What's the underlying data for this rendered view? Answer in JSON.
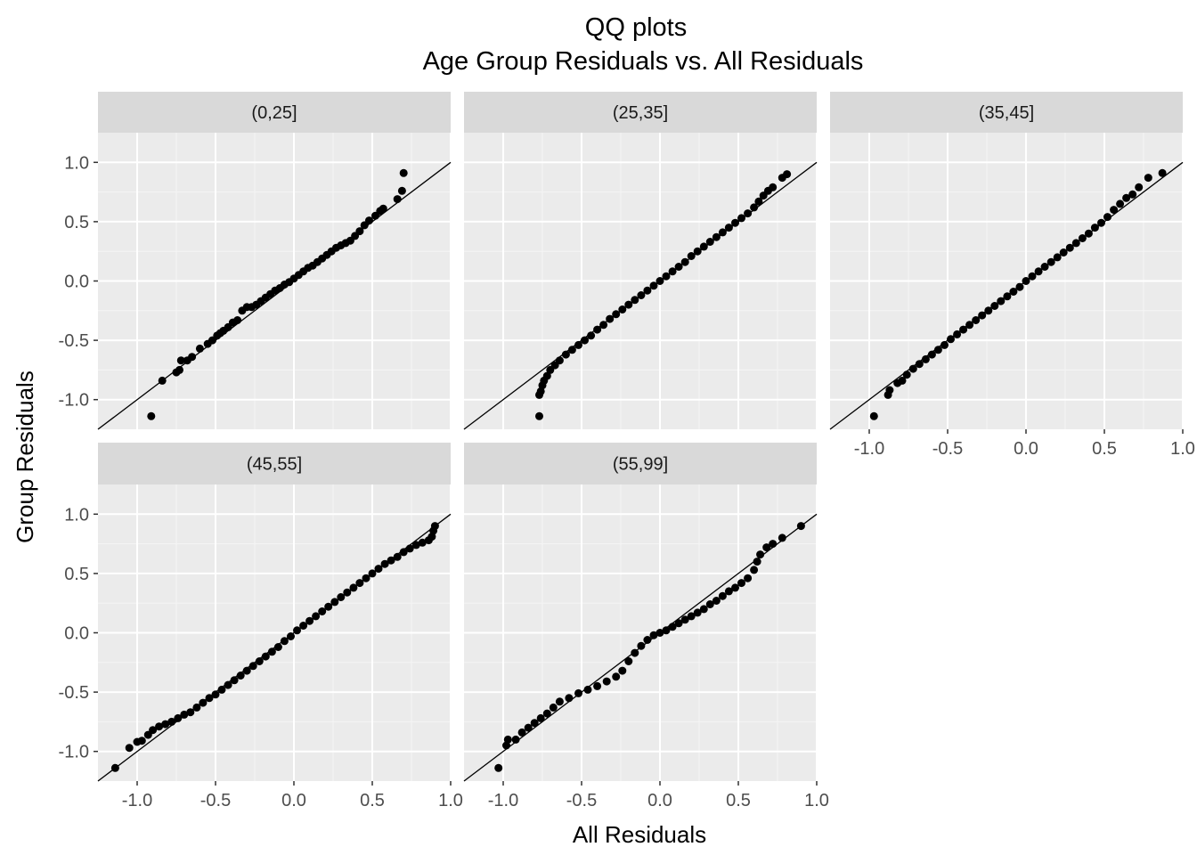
{
  "chart_data": {
    "type": "scatter",
    "title": "QQ plots",
    "subtitle": "Age Group Residuals vs. All Residuals",
    "xlabel": "All Residuals",
    "ylabel": "Group Residuals",
    "xlim": [
      -1.25,
      1.0
    ],
    "ylim": [
      -1.25,
      1.25
    ],
    "x_ticks": [
      -1.0,
      -0.5,
      0.0,
      0.5,
      1.0
    ],
    "y_ticks": [
      -1.0,
      -0.5,
      0.0,
      0.5,
      1.0
    ],
    "x_tick_labels": [
      "-1.0",
      "-0.5",
      "0.0",
      "0.5",
      "1.0"
    ],
    "y_tick_labels": [
      "-1.0",
      "-0.5",
      "0.0",
      "0.5",
      "1.0"
    ],
    "reference_line": {
      "slope": 1,
      "intercept": 0
    },
    "grid": true,
    "colors": {
      "panel_bg": "#ebebeb",
      "strip_bg": "#d9d9d9",
      "grid_major": "#ffffff",
      "grid_minor": "#f5f5f5",
      "point": "#000000",
      "line": "#000000",
      "text": "#4d4d4d",
      "strip_text": "#1a1a1a"
    },
    "panels": [
      {
        "label": "(0,25]",
        "points": [
          [
            -0.91,
            -1.14
          ],
          [
            -0.84,
            -0.84
          ],
          [
            -0.75,
            -0.77
          ],
          [
            -0.73,
            -0.75
          ],
          [
            -0.72,
            -0.67
          ],
          [
            -0.68,
            -0.67
          ],
          [
            -0.65,
            -0.64
          ],
          [
            -0.6,
            -0.57
          ],
          [
            -0.55,
            -0.53
          ],
          [
            -0.52,
            -0.5
          ],
          [
            -0.49,
            -0.46
          ],
          [
            -0.47,
            -0.44
          ],
          [
            -0.45,
            -0.42
          ],
          [
            -0.42,
            -0.39
          ],
          [
            -0.39,
            -0.35
          ],
          [
            -0.36,
            -0.33
          ],
          [
            -0.33,
            -0.25
          ],
          [
            -0.3,
            -0.22
          ],
          [
            -0.27,
            -0.22
          ],
          [
            -0.24,
            -0.2
          ],
          [
            -0.21,
            -0.17
          ],
          [
            -0.18,
            -0.14
          ],
          [
            -0.15,
            -0.11
          ],
          [
            -0.12,
            -0.08
          ],
          [
            -0.09,
            -0.06
          ],
          [
            -0.06,
            -0.03
          ],
          [
            -0.03,
            -0.01
          ],
          [
            0.0,
            0.02
          ],
          [
            0.03,
            0.05
          ],
          [
            0.06,
            0.08
          ],
          [
            0.09,
            0.11
          ],
          [
            0.12,
            0.13
          ],
          [
            0.15,
            0.16
          ],
          [
            0.18,
            0.19
          ],
          [
            0.21,
            0.22
          ],
          [
            0.24,
            0.25
          ],
          [
            0.27,
            0.28
          ],
          [
            0.3,
            0.3
          ],
          [
            0.33,
            0.32
          ],
          [
            0.36,
            0.34
          ],
          [
            0.39,
            0.38
          ],
          [
            0.42,
            0.42
          ],
          [
            0.45,
            0.47
          ],
          [
            0.48,
            0.51
          ],
          [
            0.52,
            0.55
          ],
          [
            0.55,
            0.59
          ],
          [
            0.57,
            0.61
          ],
          [
            0.66,
            0.69
          ],
          [
            0.69,
            0.76
          ],
          [
            0.7,
            0.91
          ]
        ]
      },
      {
        "label": "(25,35]",
        "points": [
          [
            -0.77,
            -1.14
          ],
          [
            -0.77,
            -0.96
          ],
          [
            -0.76,
            -0.93
          ],
          [
            -0.75,
            -0.88
          ],
          [
            -0.74,
            -0.84
          ],
          [
            -0.72,
            -0.8
          ],
          [
            -0.7,
            -0.75
          ],
          [
            -0.67,
            -0.71
          ],
          [
            -0.64,
            -0.67
          ],
          [
            -0.6,
            -0.62
          ],
          [
            -0.56,
            -0.58
          ],
          [
            -0.52,
            -0.54
          ],
          [
            -0.48,
            -0.5
          ],
          [
            -0.44,
            -0.46
          ],
          [
            -0.4,
            -0.41
          ],
          [
            -0.36,
            -0.37
          ],
          [
            -0.32,
            -0.32
          ],
          [
            -0.28,
            -0.28
          ],
          [
            -0.24,
            -0.24
          ],
          [
            -0.2,
            -0.2
          ],
          [
            -0.16,
            -0.16
          ],
          [
            -0.12,
            -0.12
          ],
          [
            -0.08,
            -0.08
          ],
          [
            -0.04,
            -0.04
          ],
          [
            0.0,
            0.0
          ],
          [
            0.04,
            0.04
          ],
          [
            0.08,
            0.08
          ],
          [
            0.12,
            0.12
          ],
          [
            0.16,
            0.16
          ],
          [
            0.2,
            0.21
          ],
          [
            0.24,
            0.25
          ],
          [
            0.28,
            0.29
          ],
          [
            0.32,
            0.33
          ],
          [
            0.36,
            0.37
          ],
          [
            0.4,
            0.41
          ],
          [
            0.44,
            0.45
          ],
          [
            0.48,
            0.49
          ],
          [
            0.52,
            0.53
          ],
          [
            0.56,
            0.57
          ],
          [
            0.6,
            0.62
          ],
          [
            0.63,
            0.67
          ],
          [
            0.66,
            0.72
          ],
          [
            0.69,
            0.76
          ],
          [
            0.72,
            0.79
          ],
          [
            0.78,
            0.87
          ],
          [
            0.81,
            0.9
          ]
        ]
      },
      {
        "label": "(35,45]",
        "points": [
          [
            -0.97,
            -1.14
          ],
          [
            -0.88,
            -0.96
          ],
          [
            -0.87,
            -0.92
          ],
          [
            -0.82,
            -0.86
          ],
          [
            -0.79,
            -0.84
          ],
          [
            -0.76,
            -0.79
          ],
          [
            -0.72,
            -0.74
          ],
          [
            -0.68,
            -0.7
          ],
          [
            -0.64,
            -0.66
          ],
          [
            -0.6,
            -0.62
          ],
          [
            -0.56,
            -0.58
          ],
          [
            -0.52,
            -0.54
          ],
          [
            -0.48,
            -0.49
          ],
          [
            -0.44,
            -0.45
          ],
          [
            -0.4,
            -0.41
          ],
          [
            -0.36,
            -0.37
          ],
          [
            -0.32,
            -0.33
          ],
          [
            -0.28,
            -0.29
          ],
          [
            -0.24,
            -0.25
          ],
          [
            -0.2,
            -0.21
          ],
          [
            -0.16,
            -0.17
          ],
          [
            -0.12,
            -0.13
          ],
          [
            -0.08,
            -0.09
          ],
          [
            -0.04,
            -0.05
          ],
          [
            0.0,
            0.0
          ],
          [
            0.04,
            0.04
          ],
          [
            0.08,
            0.08
          ],
          [
            0.12,
            0.12
          ],
          [
            0.16,
            0.16
          ],
          [
            0.2,
            0.2
          ],
          [
            0.24,
            0.24
          ],
          [
            0.28,
            0.28
          ],
          [
            0.32,
            0.32
          ],
          [
            0.36,
            0.36
          ],
          [
            0.4,
            0.4
          ],
          [
            0.44,
            0.45
          ],
          [
            0.48,
            0.49
          ],
          [
            0.52,
            0.54
          ],
          [
            0.56,
            0.6
          ],
          [
            0.6,
            0.65
          ],
          [
            0.64,
            0.7
          ],
          [
            0.68,
            0.73
          ],
          [
            0.72,
            0.79
          ],
          [
            0.78,
            0.87
          ],
          [
            0.87,
            0.91
          ]
        ]
      },
      {
        "label": "(45,55]",
        "points": [
          [
            -1.14,
            -1.14
          ],
          [
            -1.05,
            -0.97
          ],
          [
            -1.0,
            -0.92
          ],
          [
            -0.97,
            -0.91
          ],
          [
            -0.93,
            -0.86
          ],
          [
            -0.9,
            -0.82
          ],
          [
            -0.86,
            -0.79
          ],
          [
            -0.82,
            -0.77
          ],
          [
            -0.78,
            -0.75
          ],
          [
            -0.74,
            -0.72
          ],
          [
            -0.7,
            -0.69
          ],
          [
            -0.66,
            -0.67
          ],
          [
            -0.62,
            -0.63
          ],
          [
            -0.58,
            -0.59
          ],
          [
            -0.54,
            -0.55
          ],
          [
            -0.5,
            -0.52
          ],
          [
            -0.46,
            -0.48
          ],
          [
            -0.42,
            -0.44
          ],
          [
            -0.38,
            -0.4
          ],
          [
            -0.34,
            -0.36
          ],
          [
            -0.3,
            -0.32
          ],
          [
            -0.26,
            -0.28
          ],
          [
            -0.22,
            -0.24
          ],
          [
            -0.18,
            -0.2
          ],
          [
            -0.14,
            -0.16
          ],
          [
            -0.1,
            -0.12
          ],
          [
            -0.06,
            -0.07
          ],
          [
            -0.02,
            -0.03
          ],
          [
            0.02,
            0.02
          ],
          [
            0.06,
            0.06
          ],
          [
            0.1,
            0.1
          ],
          [
            0.14,
            0.14
          ],
          [
            0.18,
            0.18
          ],
          [
            0.22,
            0.22
          ],
          [
            0.26,
            0.26
          ],
          [
            0.3,
            0.3
          ],
          [
            0.34,
            0.34
          ],
          [
            0.38,
            0.38
          ],
          [
            0.42,
            0.42
          ],
          [
            0.46,
            0.46
          ],
          [
            0.5,
            0.5
          ],
          [
            0.54,
            0.54
          ],
          [
            0.58,
            0.58
          ],
          [
            0.62,
            0.61
          ],
          [
            0.66,
            0.64
          ],
          [
            0.7,
            0.68
          ],
          [
            0.74,
            0.71
          ],
          [
            0.78,
            0.74
          ],
          [
            0.82,
            0.76
          ],
          [
            0.86,
            0.78
          ],
          [
            0.88,
            0.81
          ],
          [
            0.89,
            0.86
          ],
          [
            0.9,
            0.9
          ]
        ]
      },
      {
        "label": "(55,99]",
        "points": [
          [
            -1.03,
            -1.14
          ],
          [
            -0.98,
            -0.95
          ],
          [
            -0.97,
            -0.9
          ],
          [
            -0.92,
            -0.9
          ],
          [
            -0.88,
            -0.84
          ],
          [
            -0.84,
            -0.8
          ],
          [
            -0.8,
            -0.76
          ],
          [
            -0.76,
            -0.72
          ],
          [
            -0.72,
            -0.68
          ],
          [
            -0.68,
            -0.63
          ],
          [
            -0.64,
            -0.58
          ],
          [
            -0.58,
            -0.55
          ],
          [
            -0.52,
            -0.51
          ],
          [
            -0.46,
            -0.48
          ],
          [
            -0.4,
            -0.45
          ],
          [
            -0.34,
            -0.41
          ],
          [
            -0.28,
            -0.37
          ],
          [
            -0.24,
            -0.32
          ],
          [
            -0.2,
            -0.24
          ],
          [
            -0.16,
            -0.17
          ],
          [
            -0.12,
            -0.11
          ],
          [
            -0.08,
            -0.06
          ],
          [
            -0.04,
            -0.02
          ],
          [
            0.0,
            0.0
          ],
          [
            0.04,
            0.02
          ],
          [
            0.08,
            0.05
          ],
          [
            0.12,
            0.08
          ],
          [
            0.16,
            0.11
          ],
          [
            0.2,
            0.14
          ],
          [
            0.24,
            0.17
          ],
          [
            0.28,
            0.2
          ],
          [
            0.32,
            0.24
          ],
          [
            0.36,
            0.27
          ],
          [
            0.4,
            0.31
          ],
          [
            0.44,
            0.35
          ],
          [
            0.48,
            0.38
          ],
          [
            0.52,
            0.42
          ],
          [
            0.56,
            0.46
          ],
          [
            0.6,
            0.53
          ],
          [
            0.62,
            0.6
          ],
          [
            0.64,
            0.66
          ],
          [
            0.68,
            0.72
          ],
          [
            0.72,
            0.75
          ],
          [
            0.78,
            0.8
          ],
          [
            0.9,
            0.9
          ]
        ]
      }
    ]
  }
}
